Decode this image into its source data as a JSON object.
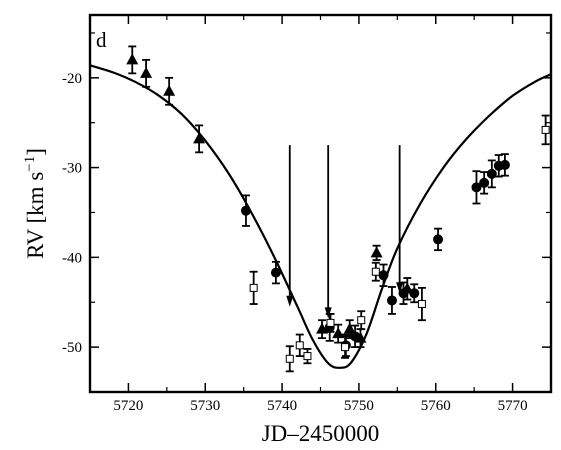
{
  "chart_data": {
    "type": "scatter",
    "panel_label": "d",
    "xlabel": "JD–2450000",
    "ylabel_main": "RV [km s",
    "ylabel_sup": "−1",
    "ylabel_close": "]",
    "xlim": [
      5715,
      5775
    ],
    "ylim": [
      -55,
      -13
    ],
    "xticks": [
      5720,
      5730,
      5740,
      5750,
      5760,
      5770
    ],
    "yticks": [
      -20,
      -30,
      -40,
      -50
    ],
    "colors": {
      "axis": "#000000",
      "marker_fill": "#000000",
      "open_marker_fill": "#ffffff"
    },
    "series": [
      {
        "marker": "triangle",
        "points": [
          {
            "x": 5720.5,
            "y": -18.0,
            "err": 1.5
          },
          {
            "x": 5722.3,
            "y": -19.5,
            "err": 1.5
          },
          {
            "x": 5725.3,
            "y": -21.5,
            "err": 1.5
          },
          {
            "x": 5729.2,
            "y": -26.8,
            "err": 1.5
          },
          {
            "x": 5745.2,
            "y": -48.0,
            "err": 1.0
          },
          {
            "x": 5747.3,
            "y": -48.5,
            "err": 1.0
          },
          {
            "x": 5748.8,
            "y": -48.0,
            "err": 1.0
          },
          {
            "x": 5750.2,
            "y": -49.0,
            "err": 1.0
          },
          {
            "x": 5752.3,
            "y": -39.5,
            "err": 0.8
          },
          {
            "x": 5756.3,
            "y": -43.5,
            "err": 1.2
          }
        ]
      },
      {
        "marker": "circle",
        "points": [
          {
            "x": 5735.3,
            "y": -34.8,
            "err": 1.7
          },
          {
            "x": 5739.2,
            "y": -41.7,
            "err": 1.2
          },
          {
            "x": 5746.2,
            "y": -47.8,
            "err": 1.5
          },
          {
            "x": 5748.3,
            "y": -49.8,
            "err": 1.2
          },
          {
            "x": 5749.5,
            "y": -48.8,
            "err": 1.2
          },
          {
            "x": 5753.2,
            "y": -42.0,
            "err": 1.2
          },
          {
            "x": 5754.3,
            "y": -44.8,
            "err": 1.5
          },
          {
            "x": 5755.8,
            "y": -44.0,
            "err": 1.2
          },
          {
            "x": 5757.2,
            "y": -44.0,
            "err": 1.0
          },
          {
            "x": 5760.3,
            "y": -38.0,
            "err": 1.2
          },
          {
            "x": 5765.3,
            "y": -32.2,
            "err": 1.8
          },
          {
            "x": 5766.3,
            "y": -31.7,
            "err": 1.2
          },
          {
            "x": 5767.3,
            "y": -30.7,
            "err": 1.5
          },
          {
            "x": 5768.2,
            "y": -29.8,
            "err": 1.2
          },
          {
            "x": 5769.0,
            "y": -29.7,
            "err": 1.2
          }
        ]
      },
      {
        "marker": "open-square",
        "points": [
          {
            "x": 5736.3,
            "y": -43.4,
            "err": 1.8
          },
          {
            "x": 5741.0,
            "y": -51.3,
            "err": 1.4
          },
          {
            "x": 5742.3,
            "y": -49.8,
            "err": 1.2
          },
          {
            "x": 5743.3,
            "y": -51.0,
            "err": 0.8
          },
          {
            "x": 5746.3,
            "y": -47.3,
            "err": 1.0
          },
          {
            "x": 5748.2,
            "y": -50.0,
            "err": 1.2
          },
          {
            "x": 5750.3,
            "y": -47.0,
            "err": 1.0
          },
          {
            "x": 5752.2,
            "y": -41.6,
            "err": 1.0
          },
          {
            "x": 5758.2,
            "y": -45.2,
            "err": 1.8
          },
          {
            "x": 5774.3,
            "y": -25.8,
            "err": 1.6
          }
        ]
      }
    ],
    "model_curve": [
      {
        "x": 5715,
        "y": -18.6
      },
      {
        "x": 5718,
        "y": -19.4
      },
      {
        "x": 5721,
        "y": -20.5
      },
      {
        "x": 5724,
        "y": -22.0
      },
      {
        "x": 5727,
        "y": -24.1
      },
      {
        "x": 5730,
        "y": -27.0
      },
      {
        "x": 5733,
        "y": -30.6
      },
      {
        "x": 5736,
        "y": -35.0
      },
      {
        "x": 5739,
        "y": -40.0
      },
      {
        "x": 5742,
        "y": -45.5
      },
      {
        "x": 5744,
        "y": -49.2
      },
      {
        "x": 5746,
        "y": -51.8
      },
      {
        "x": 5747.5,
        "y": -52.3
      },
      {
        "x": 5749,
        "y": -51.7
      },
      {
        "x": 5751,
        "y": -48.5
      },
      {
        "x": 5753,
        "y": -43.5
      },
      {
        "x": 5755,
        "y": -39.0
      },
      {
        "x": 5758,
        "y": -34.0
      },
      {
        "x": 5761,
        "y": -30.0
      },
      {
        "x": 5764,
        "y": -26.8
      },
      {
        "x": 5767,
        "y": -24.2
      },
      {
        "x": 5770,
        "y": -22.0
      },
      {
        "x": 5773,
        "y": -20.4
      },
      {
        "x": 5775,
        "y": -19.6
      }
    ],
    "arrows": [
      {
        "x": 5741,
        "y_start": -27.5,
        "y_end": -45.5
      },
      {
        "x": 5746,
        "y_start": -27.5,
        "y_end": -46.8
      },
      {
        "x": 5755.3,
        "y_start": -27.5,
        "y_end": -44.0
      }
    ]
  }
}
